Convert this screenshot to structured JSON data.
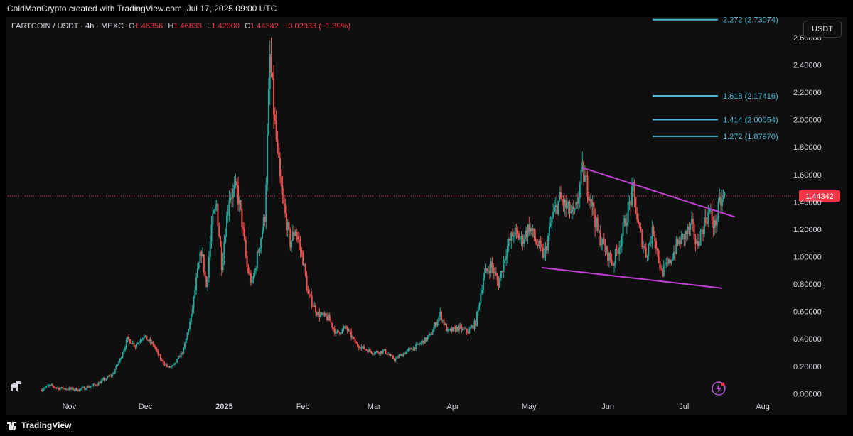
{
  "header": {
    "text": "ColdManCrypto created with TradingView.com, Jul 17, 2025 09:00 UTC"
  },
  "legend": {
    "symbol": "FARTCOIN / USDT · 4h · MEXC",
    "o_label": "O",
    "o": "1.46356",
    "h_label": "H",
    "h": "1.46633",
    "l_label": "L",
    "l": "1.42000",
    "c_label": "C",
    "c": "1.44342",
    "change": "−0.02033 (−1.39%)"
  },
  "currency_button": "USDT",
  "footer": {
    "brand": "TradingView"
  },
  "colors": {
    "up": "#26a69a",
    "down": "#ef5350",
    "fib": "#4fb6d6",
    "trendline": "#c33fd6",
    "last_price": "#f23645"
  },
  "chart_data": {
    "type": "candlestick",
    "ylim": [
      -0.05,
      2.75
    ],
    "y_ticks": [
      "0.00000",
      "0.20000",
      "0.40000",
      "0.60000",
      "0.80000",
      "1.00000",
      "1.20000",
      "1.40000",
      "1.60000",
      "1.80000",
      "2.00000",
      "2.20000",
      "2.40000",
      "2.60000"
    ],
    "y_tick_values": [
      0,
      0.2,
      0.4,
      0.6,
      0.8,
      1.0,
      1.2,
      1.4,
      1.6,
      1.8,
      2.0,
      2.2,
      2.4,
      2.6
    ],
    "x_ticks": [
      {
        "label": "Nov",
        "date": "2024-11-01"
      },
      {
        "label": "Dec",
        "date": "2024-12-01"
      },
      {
        "label": "2025",
        "date": "2025-01-01",
        "bold": true
      },
      {
        "label": "Feb",
        "date": "2025-02-01"
      },
      {
        "label": "Mar",
        "date": "2025-03-01"
      },
      {
        "label": "Apr",
        "date": "2025-04-01"
      },
      {
        "label": "May",
        "date": "2025-05-01"
      },
      {
        "label": "Jun",
        "date": "2025-06-01"
      },
      {
        "label": "Jul",
        "date": "2025-07-01"
      },
      {
        "label": "Aug",
        "date": "2025-08-01"
      }
    ],
    "price_path": [
      [
        "2024-10-21",
        0.03
      ],
      [
        "2024-10-24",
        0.06
      ],
      [
        "2024-10-28",
        0.04
      ],
      [
        "2024-11-05",
        0.03
      ],
      [
        "2024-11-12",
        0.07
      ],
      [
        "2024-11-18",
        0.14
      ],
      [
        "2024-11-21",
        0.25
      ],
      [
        "2024-11-24",
        0.4
      ],
      [
        "2024-11-27",
        0.35
      ],
      [
        "2024-11-30",
        0.42
      ],
      [
        "2024-12-04",
        0.36
      ],
      [
        "2024-12-07",
        0.25
      ],
      [
        "2024-12-10",
        0.19
      ],
      [
        "2024-12-12",
        0.2
      ],
      [
        "2024-12-16",
        0.32
      ],
      [
        "2024-12-19",
        0.56
      ],
      [
        "2024-12-21",
        0.82
      ],
      [
        "2024-12-23",
        1.05
      ],
      [
        "2024-12-25",
        0.78
      ],
      [
        "2024-12-27",
        1.22
      ],
      [
        "2024-12-29",
        1.38
      ],
      [
        "2024-12-31",
        0.95
      ],
      [
        "2025-01-03",
        1.45
      ],
      [
        "2025-01-06",
        1.49
      ],
      [
        "2025-01-08",
        1.25
      ],
      [
        "2025-01-10",
        0.92
      ],
      [
        "2025-01-12",
        0.8
      ],
      [
        "2025-01-15",
        1.1
      ],
      [
        "2025-01-17",
        1.3
      ],
      [
        "2025-01-18",
        1.85
      ],
      [
        "2025-01-19",
        2.45
      ],
      [
        "2025-01-21",
        1.95
      ],
      [
        "2025-01-23",
        1.55
      ],
      [
        "2025-01-25",
        1.3
      ],
      [
        "2025-01-27",
        1.1
      ],
      [
        "2025-01-29",
        1.2
      ],
      [
        "2025-02-01",
        0.98
      ],
      [
        "2025-02-03",
        0.72
      ],
      [
        "2025-02-07",
        0.58
      ],
      [
        "2025-02-11",
        0.55
      ],
      [
        "2025-02-14",
        0.44
      ],
      [
        "2025-02-18",
        0.48
      ],
      [
        "2025-02-22",
        0.36
      ],
      [
        "2025-02-26",
        0.32
      ],
      [
        "2025-03-01",
        0.3
      ],
      [
        "2025-03-05",
        0.31
      ],
      [
        "2025-03-09",
        0.25
      ],
      [
        "2025-03-14",
        0.31
      ],
      [
        "2025-03-18",
        0.35
      ],
      [
        "2025-03-23",
        0.42
      ],
      [
        "2025-03-27",
        0.58
      ],
      [
        "2025-03-30",
        0.45
      ],
      [
        "2025-04-03",
        0.48
      ],
      [
        "2025-04-07",
        0.45
      ],
      [
        "2025-04-10",
        0.52
      ],
      [
        "2025-04-13",
        0.85
      ],
      [
        "2025-04-16",
        0.94
      ],
      [
        "2025-04-19",
        0.8
      ],
      [
        "2025-04-22",
        1.05
      ],
      [
        "2025-04-25",
        1.18
      ],
      [
        "2025-04-28",
        1.12
      ],
      [
        "2025-05-01",
        1.22
      ],
      [
        "2025-05-04",
        1.1
      ],
      [
        "2025-05-07",
        1.0
      ],
      [
        "2025-05-10",
        1.28
      ],
      [
        "2025-05-13",
        1.42
      ],
      [
        "2025-05-16",
        1.35
      ],
      [
        "2025-05-19",
        1.3
      ],
      [
        "2025-05-22",
        1.62
      ],
      [
        "2025-05-25",
        1.45
      ],
      [
        "2025-05-28",
        1.18
      ],
      [
        "2025-05-31",
        1.05
      ],
      [
        "2025-06-03",
        0.95
      ],
      [
        "2025-06-06",
        1.12
      ],
      [
        "2025-06-09",
        1.35
      ],
      [
        "2025-06-11",
        1.48
      ],
      [
        "2025-06-13",
        1.22
      ],
      [
        "2025-06-16",
        1.02
      ],
      [
        "2025-06-19",
        1.2
      ],
      [
        "2025-06-22",
        0.88
      ],
      [
        "2025-06-25",
        0.95
      ],
      [
        "2025-06-28",
        1.08
      ],
      [
        "2025-07-01",
        1.15
      ],
      [
        "2025-07-04",
        1.22
      ],
      [
        "2025-07-06",
        1.08
      ],
      [
        "2025-07-09",
        1.25
      ],
      [
        "2025-07-11",
        1.33
      ],
      [
        "2025-07-13",
        1.22
      ],
      [
        "2025-07-15",
        1.38
      ],
      [
        "2025-07-17",
        1.44
      ]
    ],
    "fib_levels": [
      {
        "label": "2.272 (2.73074)",
        "price": 2.73074
      },
      {
        "label": "1.618 (2.17416)",
        "price": 2.17416
      },
      {
        "label": "1.414 (2.00054)",
        "price": 2.00054
      },
      {
        "label": "1.272 (1.87970)",
        "price": 1.8797
      }
    ],
    "trendlines": [
      {
        "from": [
          "2025-05-22",
          1.65
        ],
        "to": [
          "2025-07-21",
          1.29
        ]
      },
      {
        "from": [
          "2025-05-06",
          0.92
        ],
        "to": [
          "2025-07-16",
          0.77
        ]
      }
    ],
    "last_price": "1.44342",
    "last_price_value": 1.44342
  }
}
